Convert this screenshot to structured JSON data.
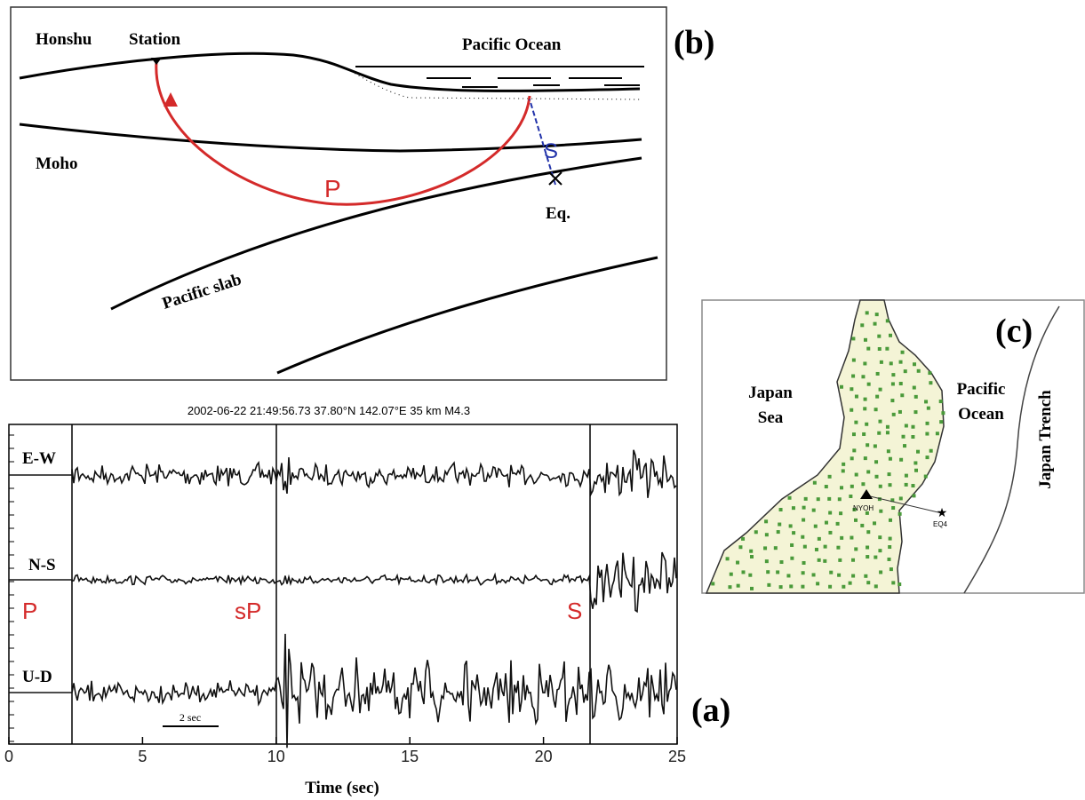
{
  "panel_b": {
    "label": "(b)",
    "honshu": "Honshu",
    "station": "Station",
    "ocean": "Pacific Ocean",
    "moho": "Moho",
    "p": "P",
    "s": "S",
    "eq": "Eq.",
    "slab": "Pacific slab"
  },
  "panel_a": {
    "label": "(a)",
    "title": "2002-06-22 21:49:56.73 37.80°N 142.07°E 35 km M4.3",
    "traces": [
      "E-W",
      "N-S",
      "U-D"
    ],
    "phases": [
      "P",
      "sP",
      "S"
    ],
    "scale_bar": "2 sec",
    "x_axis": {
      "label": "Time (sec)",
      "xlim": [
        0,
        25
      ],
      "xticks": [
        0,
        5,
        10,
        15,
        20,
        25
      ]
    }
  },
  "panel_c": {
    "label": "(c)",
    "sea": [
      "Japan",
      "Sea"
    ],
    "ocean": [
      "Pacific",
      "Ocean"
    ],
    "trench": "Japan Trench",
    "station": "NYOH",
    "event": "EQ4"
  }
}
